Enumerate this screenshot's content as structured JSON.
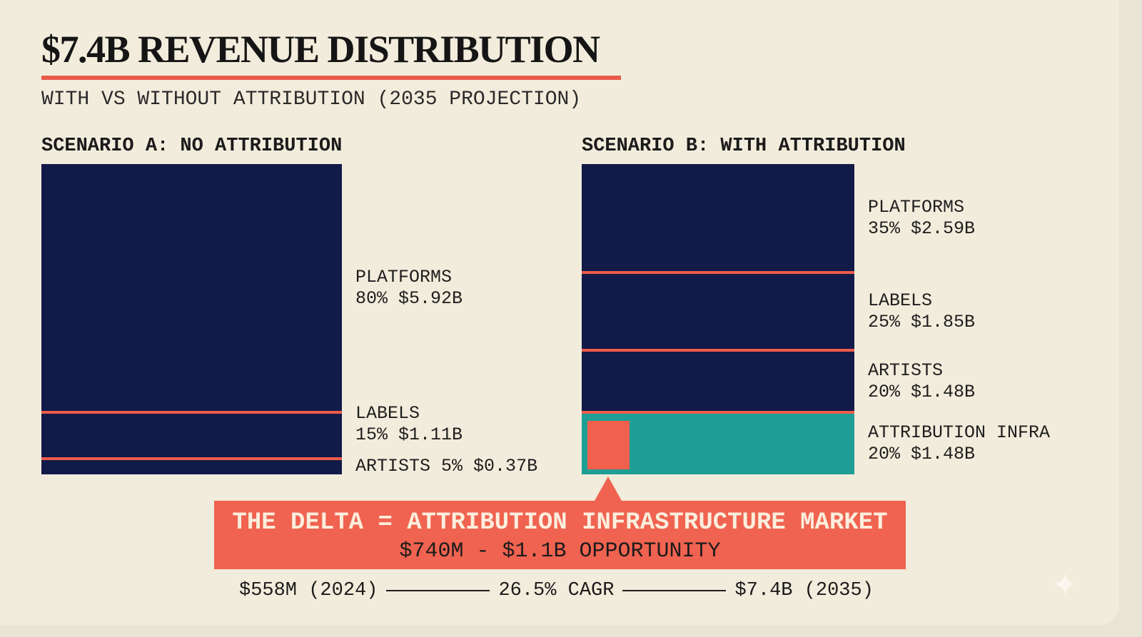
{
  "title": "$7.4B REVENUE DISTRIBUTION",
  "subtitle": "WITH VS WITHOUT ATTRIBUTION (2035 PROJECTION)",
  "colors": {
    "background": "#f2ecdc",
    "navy": "#111a48",
    "coral": "#ee5c4c",
    "teal": "#1e9e94"
  },
  "chart_data": [
    {
      "type": "bar",
      "stacked": true,
      "title": "SCENARIO A: NO ATTRIBUTION",
      "segments": [
        {
          "name": "PLATFORMS",
          "percent": 80,
          "value_label": "80% $5.92B",
          "color": "#111a48"
        },
        {
          "name": "LABELS",
          "percent": 15,
          "value_label": "15% $1.11B",
          "color": "#111a48"
        },
        {
          "name": "ARTISTS",
          "percent": 5,
          "value_label": "5% $0.37B",
          "color": "#111a48",
          "inline": true
        }
      ]
    },
    {
      "type": "bar",
      "stacked": true,
      "title": "SCENARIO B: WITH ATTRIBUTION",
      "segments": [
        {
          "name": "PLATFORMS",
          "percent": 35,
          "value_label": "35% $2.59B",
          "color": "#111a48"
        },
        {
          "name": "LABELS",
          "percent": 25,
          "value_label": "25% $1.85B",
          "color": "#111a48"
        },
        {
          "name": "ARTISTS",
          "percent": 20,
          "value_label": "20% $1.48B",
          "color": "#111a48"
        },
        {
          "name": "ATTRIBUTION INFRA",
          "percent": 20,
          "value_label": "20% $1.48B",
          "color": "#1e9e94"
        }
      ]
    }
  ],
  "callout": {
    "title": "THE DELTA = ATTRIBUTION INFRASTRUCTURE MARKET",
    "subtitle": "$740M - $1.1B OPPORTUNITY"
  },
  "growth": {
    "start": "$558M (2024)",
    "rate": "26.5% CAGR",
    "end": "$7.4B (2035)"
  },
  "icons": {
    "sparkle": "sparkle-icon"
  }
}
